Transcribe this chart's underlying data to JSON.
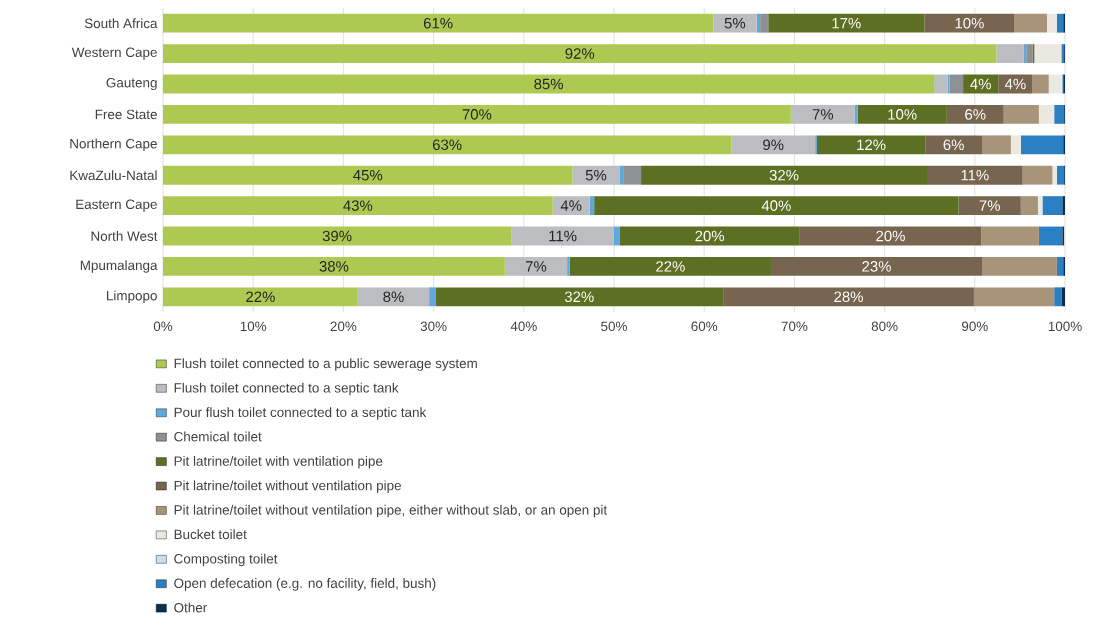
{
  "chart_data": {
    "type": "bar",
    "orientation": "horizontal",
    "stacked": true,
    "grid": "x",
    "legend": "bottom",
    "categories": [
      "South Africa",
      "Western Cape",
      "Gauteng",
      "Free State",
      "Northern Cape",
      "KwaZulu-Natal",
      "Eastern Cape",
      "North West",
      "Mpumalanga",
      "Limpopo"
    ],
    "xlim": [
      0,
      100
    ],
    "xticks": [
      {
        "value": 0,
        "label": "0%"
      },
      {
        "value": 10,
        "label": "10%"
      },
      {
        "value": 20,
        "label": "20%"
      },
      {
        "value": 30,
        "label": "30%"
      },
      {
        "value": 40,
        "label": "40%"
      },
      {
        "value": 50,
        "label": "50%"
      },
      {
        "value": 60,
        "label": "60%"
      },
      {
        "value": 70,
        "label": "70%"
      },
      {
        "value": 80,
        "label": "80%"
      },
      {
        "value": 90,
        "label": "90%"
      },
      {
        "value": 100,
        "label": "100%"
      }
    ],
    "series": [
      {
        "name": "Flush toilet connected to a public sewerage system",
        "color": "#adc952",
        "values": [
          61,
          92.4,
          85.5,
          69.6,
          63,
          45.4,
          43.2,
          38.6,
          37.9,
          21.6
        ],
        "value_labels": [
          "61%",
          "92%",
          "85%",
          "70%",
          "63%",
          "45%",
          "43%",
          "39%",
          "38%",
          "22%"
        ]
      },
      {
        "name": "Flush toilet connected to a septic tank",
        "color": "#bcbdc1",
        "values": [
          4.8,
          3.0,
          1.5,
          7.1,
          9.3,
          5.2,
          4.1,
          11.4,
          6.9,
          7.9
        ],
        "value_labels": [
          "5%",
          null,
          null,
          "7%",
          "9%",
          "5%",
          "4%",
          "11%",
          "7%",
          "8%"
        ]
      },
      {
        "name": "Pour flush toilet connected to a septic tank",
        "color": "#5da9dd",
        "values": [
          0.4,
          0.3,
          0.2,
          0.3,
          0.2,
          0.5,
          0.5,
          0.6,
          0.3,
          0.7
        ]
      },
      {
        "name": "Chemical toilet",
        "color": "#8e9094",
        "values": [
          0.9,
          0.7,
          1.5,
          0,
          0,
          1.9,
          0,
          0,
          0,
          0
        ]
      },
      {
        "name": "Pit latrine/toilet with ventilation pipe",
        "color": "#5d6f22",
        "values": [
          17.3,
          0.2,
          3.9,
          9.9,
          12,
          31.7,
          40.4,
          20,
          22.3,
          31.9
        ],
        "value_labels": [
          "17%",
          null,
          "4%",
          "10%",
          "12%",
          "32%",
          "40%",
          "20%",
          "22%",
          "32%"
        ]
      },
      {
        "name": "Pit latrine/toilet without ventilation pipe",
        "color": "#776550",
        "values": [
          10,
          0,
          3.8,
          6.3,
          6.3,
          10.6,
          6.9,
          20.1,
          23.4,
          27.8
        ],
        "value_labels": [
          "10%",
          null,
          "4%",
          "6%",
          "6%",
          "11%",
          "7%",
          "20%",
          "23%",
          "28%"
        ]
      },
      {
        "name": "Pit latrine/toilet without ventilation pipe, either without slab, or an open pit",
        "color": "#a89479",
        "values": [
          3.6,
          0,
          1.8,
          3.9,
          3.2,
          3.3,
          1.9,
          6.4,
          8.3,
          8.9
        ]
      },
      {
        "name": "Bucket toilet",
        "color": "#ebe8e2",
        "values": [
          1.1,
          3.0,
          1.5,
          1.7,
          1.1,
          0.5,
          0.5,
          null,
          0,
          0
        ]
      },
      {
        "name": "Composting toilet",
        "color": "#c8dff0",
        "values": [
          0,
          0,
          0,
          0,
          0,
          0,
          0,
          0,
          0,
          0
        ]
      },
      {
        "name": "Open defecation (e.g. no facility, field, bush)",
        "color": "#2b80c3",
        "values": [
          0.7,
          0.3,
          0.1,
          1.1,
          4.7,
          0.8,
          2.2,
          2.6,
          0.7,
          0.8
        ]
      },
      {
        "name": "Other",
        "color": "#0d2e4c",
        "values": [
          0.2,
          0.1,
          0.2,
          0.1,
          0.2,
          0.1,
          0.3,
          0.2,
          0.2,
          0.4
        ]
      }
    ]
  }
}
